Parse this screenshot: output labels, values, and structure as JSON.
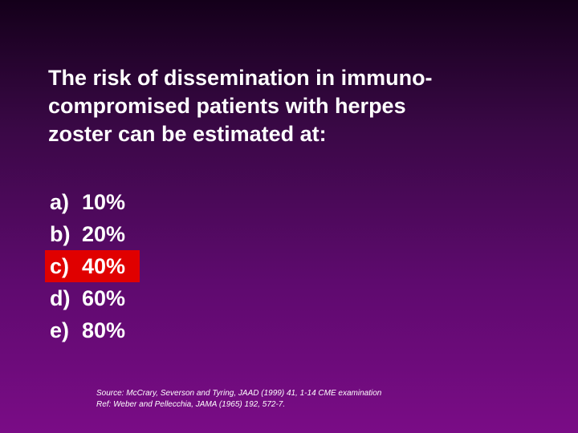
{
  "question": "The risk of dissemination in immuno-compromised patients with herpes zoster can be estimated at:",
  "question_lines": [
    "The risk of dissemination in immuno-",
    "compromised patients with herpes",
    "zoster can be estimated at:"
  ],
  "options": [
    {
      "letter": "a)",
      "value": "10%"
    },
    {
      "letter": "b)",
      "value": "20%"
    },
    {
      "letter": "c)",
      "value": "40%"
    },
    {
      "letter": "d)",
      "value": "60%"
    },
    {
      "letter": "e)",
      "value": "80%"
    }
  ],
  "highlighted_option": "c)",
  "highlight_color": "#e00000",
  "source_lines": [
    "Source:  McCrary, Severson and Tyring, JAAD (1999) 41, 1-14 CME examination",
    "Ref: Weber and Pellecchia, JAMA (1965) 192, 572-7."
  ]
}
